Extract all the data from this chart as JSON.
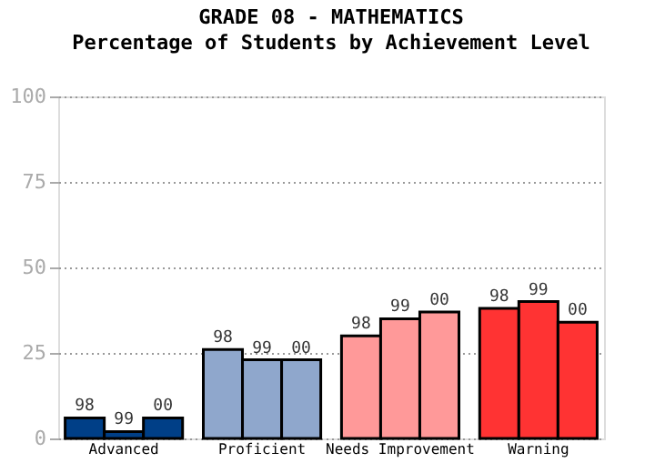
{
  "chart_data": {
    "type": "bar",
    "title": "GRADE 08 - MATHEMATICS",
    "subtitle": "Percentage of Students by Achievement Level",
    "categories": [
      "Advanced",
      "Proficient",
      "Needs Improvement",
      "Warning"
    ],
    "series": [
      {
        "name": "98",
        "colors": [
          "#003f87",
          "#8fa7cc",
          "#ff9999",
          "#ff3333"
        ],
        "values": [
          6,
          26,
          30,
          38
        ]
      },
      {
        "name": "99",
        "colors": [
          "#003f87",
          "#8fa7cc",
          "#ff9999",
          "#ff3333"
        ],
        "values": [
          2,
          23,
          35,
          40
        ]
      },
      {
        "name": "00",
        "colors": [
          "#003f87",
          "#8fa7cc",
          "#ff9999",
          "#ff3333"
        ],
        "values": [
          6,
          23,
          37,
          34
        ]
      }
    ],
    "ylim": [
      0,
      100
    ],
    "yticks": [
      0,
      25,
      50,
      75,
      100
    ],
    "grid": "y"
  }
}
